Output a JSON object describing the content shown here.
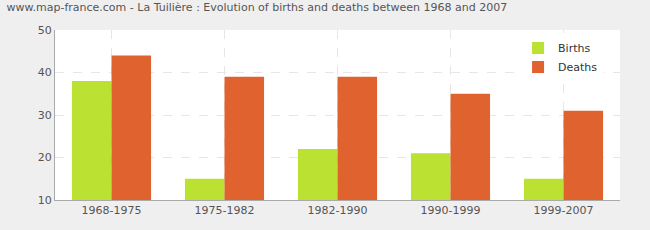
{
  "chart_data": {
    "type": "bar",
    "title": "www.map-france.com - La Tuilière : Evolution of births and deaths between 1968 and 2007",
    "categories": [
      "1968-1975",
      "1975-1982",
      "1982-1990",
      "1990-1999",
      "1999-2007"
    ],
    "series": [
      {
        "name": "Births",
        "color": "#bbe132",
        "values": [
          38,
          15,
          22,
          21,
          15
        ]
      },
      {
        "name": "Deaths",
        "color": "#e0632f",
        "values": [
          44,
          39,
          39,
          35,
          31
        ]
      }
    ],
    "ylim": [
      10,
      50
    ],
    "yticks": [
      10,
      20,
      30,
      40,
      50
    ],
    "grid": true,
    "legend": "top-right"
  }
}
